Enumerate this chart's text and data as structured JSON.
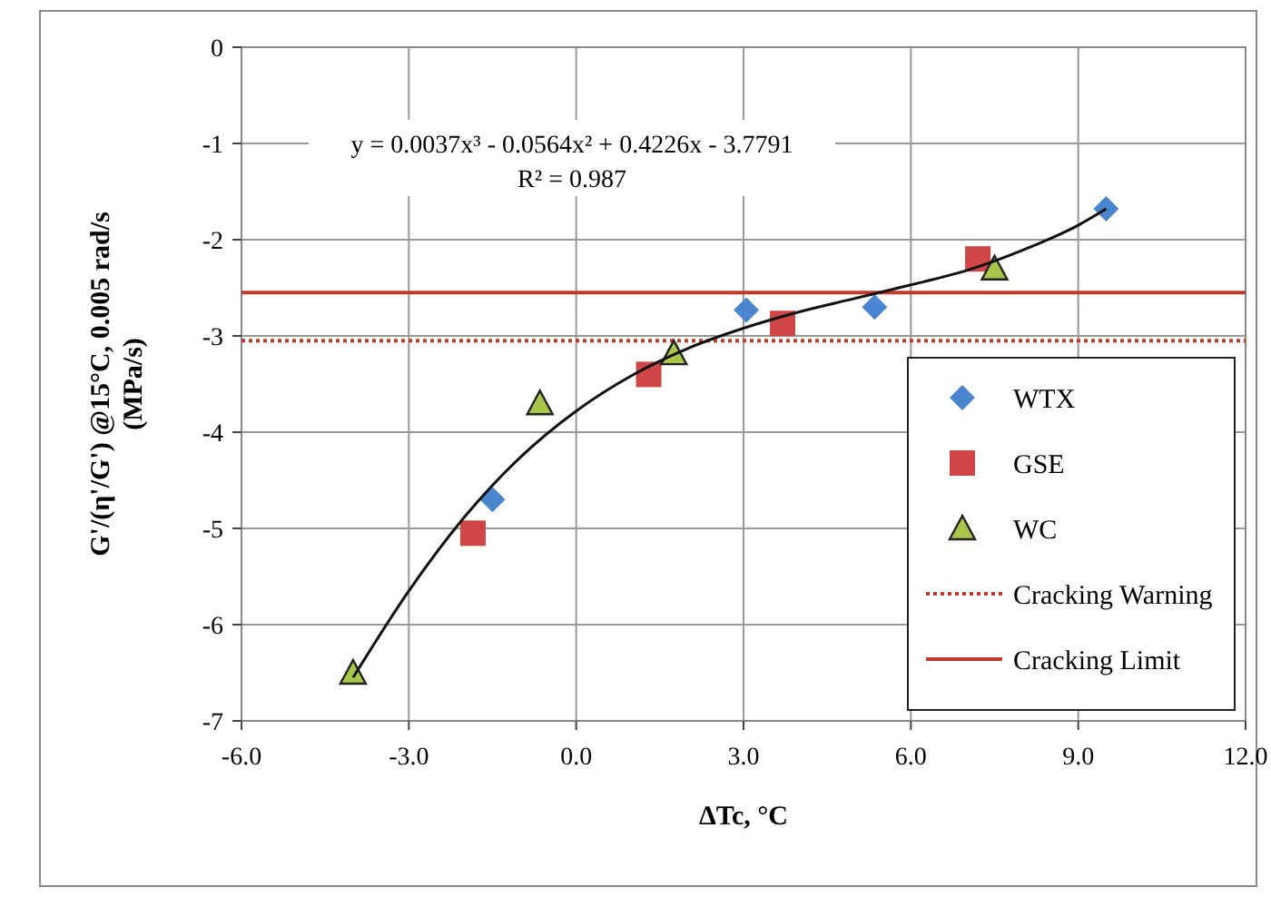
{
  "chart_data": {
    "type": "scatter",
    "xlabel": "ΔTc, °C",
    "ylabel": "G'/(η'/G') @15°C, 0.005 rad/s\n(MPa/s)",
    "xlim": [
      -6,
      12
    ],
    "ylim": [
      -7,
      0
    ],
    "xticks": [
      {
        "value": -6,
        "label": "-6.0"
      },
      {
        "value": -3,
        "label": "-3.0"
      },
      {
        "value": 0,
        "label": "0.0"
      },
      {
        "value": 3,
        "label": "3.0"
      },
      {
        "value": 6,
        "label": "6.0"
      },
      {
        "value": 9,
        "label": "9.0"
      },
      {
        "value": 12,
        "label": "12.0"
      }
    ],
    "yticks": [
      -7,
      -6,
      -5,
      -4,
      -3,
      -2,
      -1,
      0
    ],
    "grid": true,
    "legend": "bottom right",
    "annotations": [
      "y = 0.0037x³ - 0.0564x² + 0.4226x - 3.7791",
      "R² = 0.987"
    ],
    "series": [
      {
        "name": "WTX",
        "marker": "diamond",
        "color": "#4a86d0",
        "x": [
          -1.5,
          3.05,
          5.35,
          9.5
        ],
        "values": [
          -4.7,
          -2.73,
          -2.7,
          -1.68
        ]
      },
      {
        "name": "GSE",
        "marker": "square",
        "color": "#d04545",
        "x": [
          -1.85,
          1.3,
          3.7,
          7.2
        ],
        "values": [
          -5.05,
          -3.4,
          -2.87,
          -2.2
        ]
      },
      {
        "name": "WC",
        "marker": "triangle",
        "color": "#a8c64a",
        "x": [
          -4.0,
          -0.65,
          1.75,
          7.5
        ],
        "values": [
          -6.5,
          -3.7,
          -3.18,
          -2.3
        ]
      },
      {
        "type": "line",
        "marker": "none",
        "color": "#111111",
        "x": [
          -4,
          -3,
          -2,
          -1,
          0,
          1,
          2,
          3,
          4,
          5,
          6,
          7,
          8,
          9,
          9.5
        ],
        "values": [
          -6.55,
          -5.65,
          -4.88,
          -4.26,
          -3.78,
          -3.41,
          -3.13,
          -2.92,
          -2.75,
          -2.61,
          -2.47,
          -2.32,
          -2.11,
          -1.85,
          -1.68
        ]
      }
    ],
    "ref_lines": [
      {
        "axis": "y",
        "value": -3.05,
        "label": "Cracking Warning",
        "color": "#c0392b",
        "line_style": "dotted"
      },
      {
        "axis": "y",
        "value": -2.55,
        "label": "Cracking Limit",
        "color": "#c0392b",
        "line_style": "solid"
      }
    ]
  }
}
